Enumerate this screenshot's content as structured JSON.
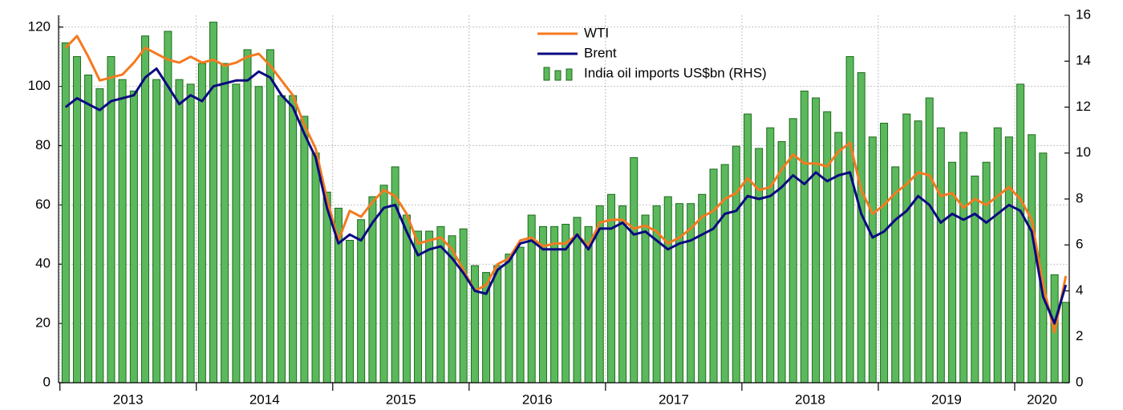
{
  "chart_data": {
    "type": "bar-line",
    "x": [
      2013.042,
      2013.125,
      2013.208,
      2013.292,
      2013.375,
      2013.458,
      2013.542,
      2013.625,
      2013.708,
      2013.792,
      2013.875,
      2013.958,
      2014.042,
      2014.125,
      2014.208,
      2014.292,
      2014.375,
      2014.458,
      2014.542,
      2014.625,
      2014.708,
      2014.792,
      2014.875,
      2014.958,
      2015.042,
      2015.125,
      2015.208,
      2015.292,
      2015.375,
      2015.458,
      2015.542,
      2015.625,
      2015.708,
      2015.792,
      2015.875,
      2015.958,
      2016.042,
      2016.125,
      2016.208,
      2016.292,
      2016.375,
      2016.458,
      2016.542,
      2016.625,
      2016.708,
      2016.792,
      2016.875,
      2016.958,
      2017.042,
      2017.125,
      2017.208,
      2017.292,
      2017.375,
      2017.458,
      2017.542,
      2017.625,
      2017.708,
      2017.792,
      2017.875,
      2017.958,
      2018.042,
      2018.125,
      2018.208,
      2018.292,
      2018.375,
      2018.458,
      2018.542,
      2018.625,
      2018.708,
      2018.792,
      2018.875,
      2018.958,
      2019.042,
      2019.125,
      2019.208,
      2019.292,
      2019.375,
      2019.458,
      2019.542,
      2019.625,
      2019.708,
      2019.792,
      2019.875,
      2019.958,
      2020.042,
      2020.125,
      2020.208,
      2020.292,
      2020.375
    ],
    "series": [
      {
        "name": "India oil imports US$bn (RHS)",
        "kind": "bar",
        "axis": "y2",
        "color": "#5cb85c",
        "edge": "#1d6b1d",
        "values": [
          14.8,
          14.2,
          13.4,
          12.8,
          14.2,
          13.2,
          12.7,
          15.1,
          13.2,
          15.3,
          13.2,
          13.0,
          13.9,
          15.7,
          13.9,
          13.0,
          14.5,
          12.9,
          14.5,
          12.5,
          12.5,
          11.6,
          10.0,
          8.3,
          7.6,
          6.2,
          7.1,
          8.1,
          8.6,
          9.4,
          7.3,
          6.6,
          6.6,
          6.8,
          6.4,
          6.7,
          5.1,
          4.8,
          5.1,
          5.6,
          5.9,
          7.3,
          6.8,
          6.8,
          6.9,
          7.2,
          6.8,
          7.7,
          8.2,
          7.7,
          9.8,
          7.3,
          7.7,
          8.1,
          7.8,
          7.8,
          8.2,
          9.3,
          9.5,
          10.3,
          11.7,
          10.2,
          11.1,
          10.5,
          11.5,
          12.7,
          12.4,
          11.8,
          10.9,
          14.2,
          13.5,
          10.7,
          11.3,
          9.4,
          11.7,
          11.4,
          12.4,
          11.1,
          9.6,
          10.9,
          9.0,
          9.6,
          11.1,
          10.7,
          13.0,
          10.8,
          10.0,
          4.7,
          3.5
        ]
      },
      {
        "name": "WTI",
        "kind": "line",
        "color": "#f47a20",
        "values": [
          113,
          117,
          110,
          102,
          103,
          104,
          108,
          113,
          111,
          109,
          108,
          110,
          108,
          109,
          107,
          108,
          110,
          111,
          107,
          102,
          97,
          87,
          79,
          62,
          48,
          58,
          56,
          61,
          65,
          63,
          57,
          47,
          48,
          49,
          45,
          38,
          31,
          33,
          40,
          42,
          48,
          49,
          46,
          47,
          47,
          50,
          46,
          54,
          55,
          55,
          52,
          53,
          51,
          47,
          49,
          52,
          56,
          58,
          62,
          64,
          69,
          65,
          66,
          72,
          77,
          74,
          74,
          73,
          78,
          81,
          65,
          57,
          60,
          64,
          67,
          71,
          70,
          63,
          64,
          59,
          62,
          60,
          63,
          66,
          62,
          55,
          33,
          17,
          36
        ]
      },
      {
        "name": "Brent",
        "kind": "line",
        "color": "#0a0a80",
        "values": [
          93,
          96,
          94,
          92,
          95,
          96,
          97,
          103,
          106,
          100,
          94,
          97,
          95,
          100,
          101,
          102,
          102,
          105,
          103,
          97,
          93,
          84,
          76,
          59,
          47,
          50,
          48,
          54,
          59,
          60,
          51,
          43,
          45,
          46,
          42,
          37,
          31,
          30,
          38,
          41,
          47,
          48,
          45,
          45,
          45,
          50,
          45,
          52,
          52,
          54,
          50,
          51,
          48,
          45,
          47,
          48,
          50,
          52,
          57,
          58,
          63,
          62,
          63,
          66,
          70,
          67,
          71,
          68,
          70,
          71,
          57,
          49,
          51,
          55,
          58,
          63,
          60,
          54,
          57,
          55,
          57,
          54,
          57,
          60,
          58,
          51,
          29,
          20,
          33
        ]
      }
    ],
    "xlim": [
      2012.99,
      2020.4
    ],
    "xticks": [
      {
        "value": 2013.5,
        "label": "2013"
      },
      {
        "value": 2014.5,
        "label": "2014"
      },
      {
        "value": 2015.5,
        "label": "2015"
      },
      {
        "value": 2016.5,
        "label": "2016"
      },
      {
        "value": 2017.5,
        "label": "2017"
      },
      {
        "value": 2018.5,
        "label": "2018"
      },
      {
        "value": 2019.5,
        "label": "2019"
      },
      {
        "value": 2020.2,
        "label": "2020"
      }
    ],
    "xminorticks": [
      2013,
      2014,
      2015,
      2016,
      2017,
      2018,
      2019,
      2020
    ],
    "ylim": [
      0,
      124
    ],
    "yticks": [
      0,
      20,
      40,
      60,
      80,
      100,
      120
    ],
    "y2lim": [
      0,
      16
    ],
    "y2ticks": [
      0,
      2,
      4,
      6,
      8,
      10,
      12,
      14,
      16
    ],
    "grid": true,
    "legend": "top-center"
  }
}
